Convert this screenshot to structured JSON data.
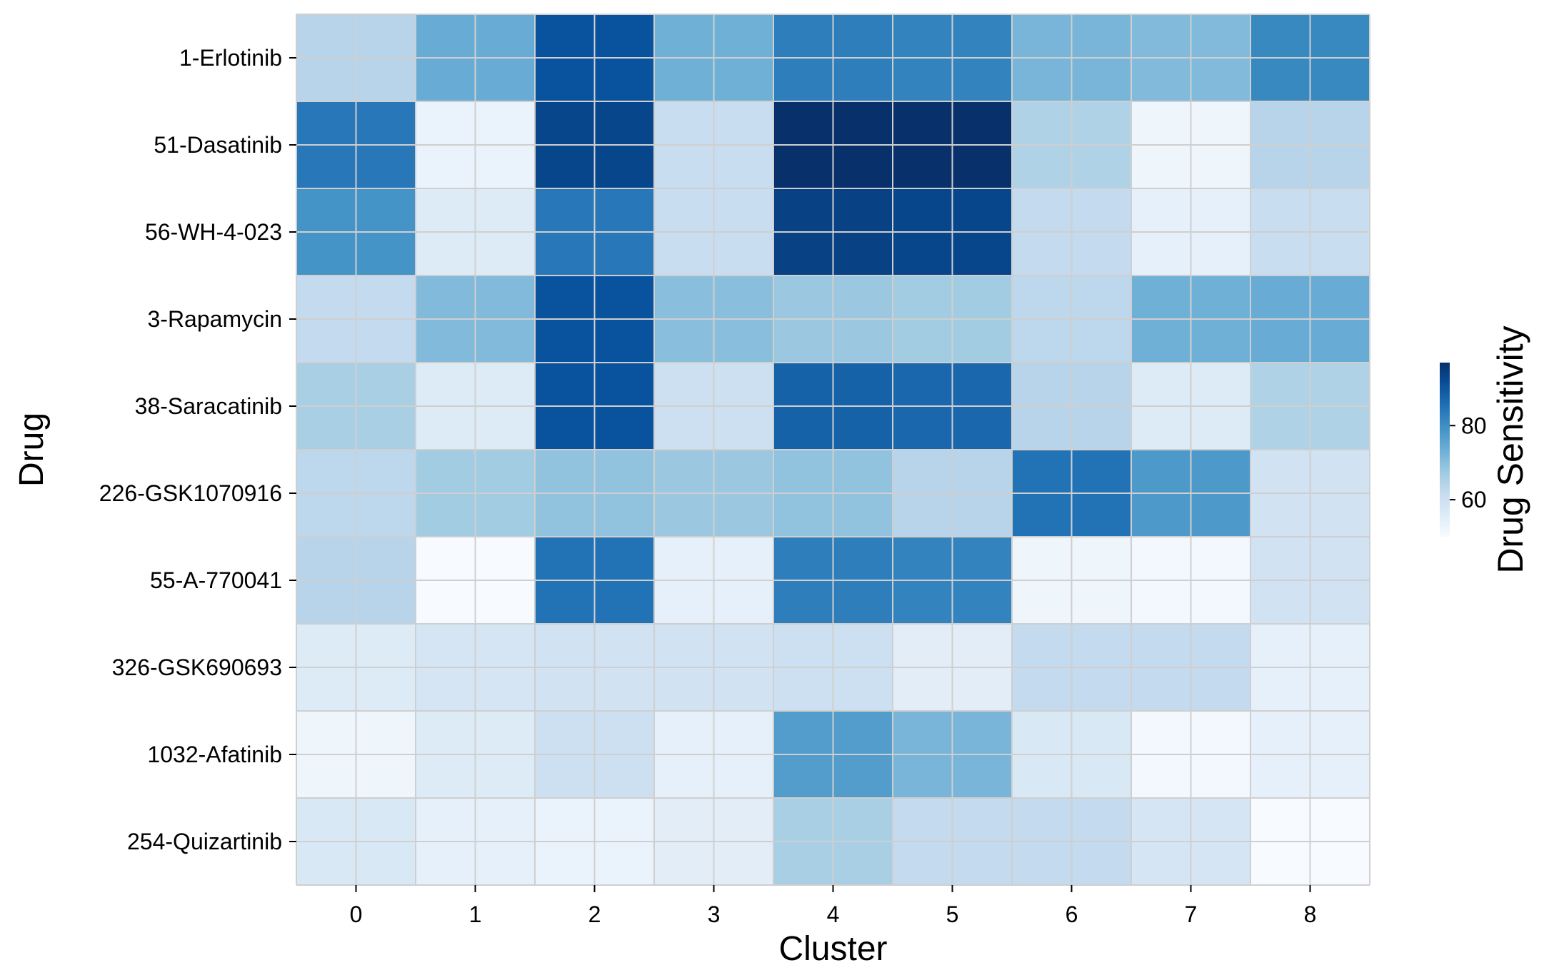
{
  "chart_data": {
    "type": "heatmap",
    "title": "",
    "xlabel": "Cluster",
    "ylabel": "Drug",
    "x_categories": [
      "0",
      "1",
      "2",
      "3",
      "4",
      "5",
      "6",
      "7",
      "8"
    ],
    "y_categories": [
      "1-Erlotinib",
      "51-Dasatinib",
      "56-WH-4-023",
      "3-Rapamycin",
      "38-Saracatinib",
      "226-GSK1070916",
      "55-A-770041",
      "326-GSK690693",
      "1032-Afatinib",
      "254-Quizartinib"
    ],
    "values": [
      [
        64,
        74,
        91,
        73,
        83,
        82,
        72,
        71,
        81
      ],
      [
        84,
        53,
        93,
        61,
        97,
        97,
        65,
        52,
        64
      ],
      [
        79,
        56,
        84,
        61,
        94,
        93,
        62,
        54,
        61
      ],
      [
        62,
        71,
        91,
        70,
        68,
        67,
        63,
        73,
        74
      ],
      [
        66,
        56,
        91,
        60,
        88,
        87,
        64,
        56,
        65
      ],
      [
        63,
        67,
        69,
        68,
        69,
        64,
        85,
        78,
        59
      ],
      [
        64,
        50,
        85,
        54,
        83,
        82,
        52,
        51,
        59
      ],
      [
        56,
        58,
        59,
        59,
        60,
        55,
        62,
        62,
        54
      ],
      [
        52,
        56,
        60,
        54,
        77,
        72,
        57,
        51,
        54
      ],
      [
        57,
        54,
        53,
        55,
        66,
        62,
        62,
        58,
        50
      ]
    ],
    "colorscale": "Blues",
    "vmin": 50,
    "vmax": 97,
    "colorbar": {
      "label": "Drug Sensitivity",
      "ticks": [
        60,
        80
      ],
      "tick_labels": [
        "60",
        "80"
      ]
    },
    "grid": true,
    "legend_placement": "right"
  }
}
